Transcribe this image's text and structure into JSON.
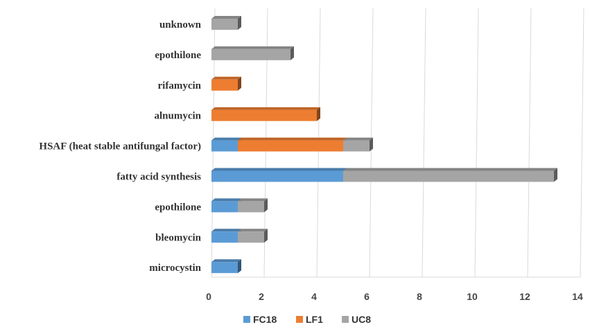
{
  "chart_data": {
    "type": "bar",
    "orientation": "horizontal",
    "stacked": true,
    "style": "3d",
    "categories": [
      "microcystin",
      "bleomycin",
      "epothilone",
      "fatty acid synthesis",
      "HSAF (heat stable antifungal factor)",
      "alnumycin",
      "rifamycin",
      "epothilone",
      "unknown"
    ],
    "series": [
      {
        "name": "FC18",
        "color": "#5b9bd5",
        "values": [
          1,
          1,
          1,
          5,
          1,
          0,
          0,
          0,
          0
        ]
      },
      {
        "name": "LF1",
        "color": "#ed7d31",
        "values": [
          0,
          0,
          0,
          0,
          4,
          4,
          1,
          0,
          0
        ]
      },
      {
        "name": "UC8",
        "color": "#a5a5a5",
        "values": [
          0,
          1,
          1,
          8,
          1,
          0,
          0,
          3,
          1
        ]
      }
    ],
    "xlim": [
      0,
      14
    ],
    "xticks": [
      "0",
      "2",
      "4",
      "6",
      "8",
      "10",
      "12",
      "14"
    ],
    "grid": true,
    "legend_position": "bottom",
    "title": "",
    "xlabel": "",
    "ylabel": ""
  }
}
